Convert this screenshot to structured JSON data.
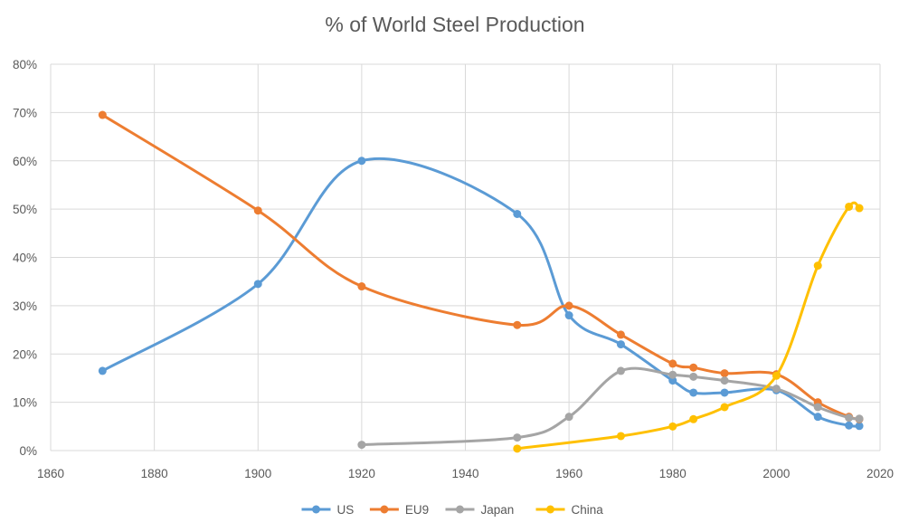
{
  "chart_data": {
    "type": "line",
    "title": "% of World Steel Production",
    "xlabel": "",
    "ylabel": "",
    "xlim": [
      1860,
      2020
    ],
    "ylim": [
      0,
      80
    ],
    "x_ticks": [
      "1860",
      "1880",
      "1900",
      "1920",
      "1940",
      "1960",
      "1980",
      "2000",
      "2020"
    ],
    "y_ticks": [
      "0%",
      "10%",
      "20%",
      "30%",
      "40%",
      "50%",
      "60%",
      "70%",
      "80%"
    ],
    "grid": true,
    "smooth": true,
    "legend_position": "bottom",
    "series": [
      {
        "name": "US",
        "color": "#5b9bd5",
        "points": [
          [
            1870,
            16.5
          ],
          [
            1900,
            34.5
          ],
          [
            1920,
            60
          ],
          [
            1950,
            49
          ],
          [
            1960,
            28
          ],
          [
            1970,
            22
          ],
          [
            1980,
            14.5
          ],
          [
            1984,
            12
          ],
          [
            1990,
            12
          ],
          [
            2000,
            12.5
          ],
          [
            2008,
            7
          ],
          [
            2014,
            5.2
          ],
          [
            2016,
            5.1
          ]
        ]
      },
      {
        "name": "EU9",
        "color": "#ed7d31",
        "points": [
          [
            1870,
            69.5
          ],
          [
            1900,
            49.7
          ],
          [
            1920,
            34
          ],
          [
            1950,
            26
          ],
          [
            1960,
            30
          ],
          [
            1970,
            24
          ],
          [
            1980,
            18
          ],
          [
            1984,
            17.2
          ],
          [
            1990,
            16
          ],
          [
            2000,
            15.8
          ],
          [
            2008,
            10
          ],
          [
            2014,
            7
          ],
          [
            2016,
            6.5
          ]
        ]
      },
      {
        "name": "Japan",
        "color": "#a5a5a5",
        "points": [
          [
            1920,
            1.2
          ],
          [
            1950,
            2.7
          ],
          [
            1960,
            7
          ],
          [
            1970,
            16.5
          ],
          [
            1980,
            15.7
          ],
          [
            1984,
            15.3
          ],
          [
            1990,
            14.5
          ],
          [
            2000,
            12.8
          ],
          [
            2008,
            9
          ],
          [
            2014,
            6.8
          ],
          [
            2016,
            6.6
          ]
        ]
      },
      {
        "name": "China",
        "color": "#ffc000",
        "points": [
          [
            1950,
            0.4
          ],
          [
            1970,
            3
          ],
          [
            1980,
            5
          ],
          [
            1984,
            6.5
          ],
          [
            1990,
            9
          ],
          [
            2000,
            15.5
          ],
          [
            2008,
            38.3
          ],
          [
            2014,
            50.5
          ],
          [
            2016,
            50.2
          ]
        ]
      }
    ]
  }
}
